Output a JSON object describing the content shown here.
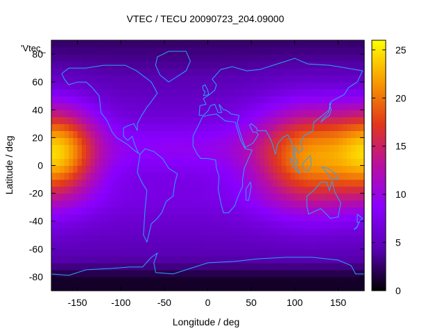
{
  "chart_data": {
    "type": "heatmap",
    "title": "VTEC / TECU 20090723_204.09000",
    "xlabel": "Longitude / deg",
    "ylabel": "Latitude / deg",
    "series_key": "'Vtec_",
    "xlim": [
      -180,
      180
    ],
    "ylim": [
      -90,
      90
    ],
    "x_ticks": [
      -150,
      -100,
      -50,
      0,
      50,
      100,
      150
    ],
    "y_ticks": [
      -80,
      -60,
      -40,
      -20,
      0,
      20,
      40,
      60,
      80
    ],
    "colorbar": {
      "range": [
        0,
        26
      ],
      "ticks": [
        0,
        5,
        10,
        15,
        20,
        25
      ],
      "palette": [
        "#000000",
        "#5a00b4",
        "#8a00ff",
        "#b80fa0",
        "#e2381a",
        "#f89a00",
        "#ffff00"
      ]
    },
    "field": {
      "description_of_values": "VTEC in TECU",
      "background_level": 7,
      "features": [
        {
          "name": "pacific-maximum",
          "lon": -168,
          "lat": 10,
          "peak": 20,
          "lon_width": 30,
          "lat_width": 22
        },
        {
          "name": "asia-maximum",
          "lon": 118,
          "lat": 6,
          "peak": 21,
          "lon_width": 45,
          "lat_width": 25
        },
        {
          "name": "southern-polar-minimum",
          "lat_below": -70,
          "level": 1
        }
      ]
    }
  },
  "colors": {
    "coastline": "#2aa6ff"
  }
}
